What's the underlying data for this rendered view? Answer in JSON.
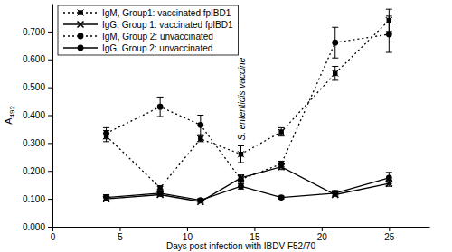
{
  "chart_data": {
    "type": "line",
    "x_label": "Days post infection with IBDV F52/70",
    "y_label": "A",
    "y_label_subscript": "492",
    "annotation": "S. enteritidis vaccine",
    "x": [
      4,
      8,
      11,
      14,
      17,
      21,
      25
    ],
    "xlim": [
      0,
      28
    ],
    "xticks": [
      0,
      5,
      10,
      15,
      20,
      25
    ],
    "ylim": [
      0,
      0.8
    ],
    "yticks": [
      {
        "value": 0,
        "label": "0.000"
      },
      {
        "value": 0.1,
        "label": "0.100"
      },
      {
        "value": 0.2,
        "label": "0.200"
      },
      {
        "value": 0.3,
        "label": "0.300"
      },
      {
        "value": 0.4,
        "label": "0.400"
      },
      {
        "value": 0.5,
        "label": "0.500"
      },
      {
        "value": 0.6,
        "label": "0.600"
      },
      {
        "value": 0.7,
        "label": "0.700"
      }
    ],
    "legend": "upper left",
    "series": [
      {
        "name": "IgM,  Group1: vaccinated fpIBD1",
        "color": "#000000",
        "marker": "square",
        "line_style": "dotted",
        "values": [
          0.325,
          0.14,
          0.315,
          0.26,
          0.34,
          0.55,
          0.74
        ],
        "errors": [
          0.02,
          0.005,
          0.01,
          0.03,
          0.015,
          0.025,
          0.04
        ]
      },
      {
        "name": "IgG, Group 1: vaccinated fpIBD1",
        "color": "#000000",
        "marker": "x",
        "line_style": "solid",
        "values": [
          0.1,
          0.115,
          0.09,
          0.175,
          0.215,
          0.115,
          0.155
        ],
        "errors": [
          0.005,
          0.005,
          0.005,
          0.01,
          0.01,
          0.005,
          0.01
        ]
      },
      {
        "name": "IgM, Group 2: unvaccinated",
        "color": "#000000",
        "marker": "circle",
        "line_style": "dotted",
        "values": [
          0.335,
          0.43,
          0.365,
          0.17,
          0.225,
          0.66,
          0.69
        ],
        "errors": [
          0.02,
          0.035,
          0.035,
          0.015,
          0.01,
          0.055,
          0.065
        ]
      },
      {
        "name": "IgG, Group 2: unvaccinated",
        "color": "#000000",
        "marker": "circle",
        "line_style": "solid",
        "values": [
          0.105,
          0.12,
          0.095,
          0.145,
          0.105,
          0.12,
          0.175
        ],
        "errors": [
          0.01,
          0.01,
          0.005,
          0.01,
          0.005,
          0.01,
          0.02
        ]
      }
    ]
  }
}
